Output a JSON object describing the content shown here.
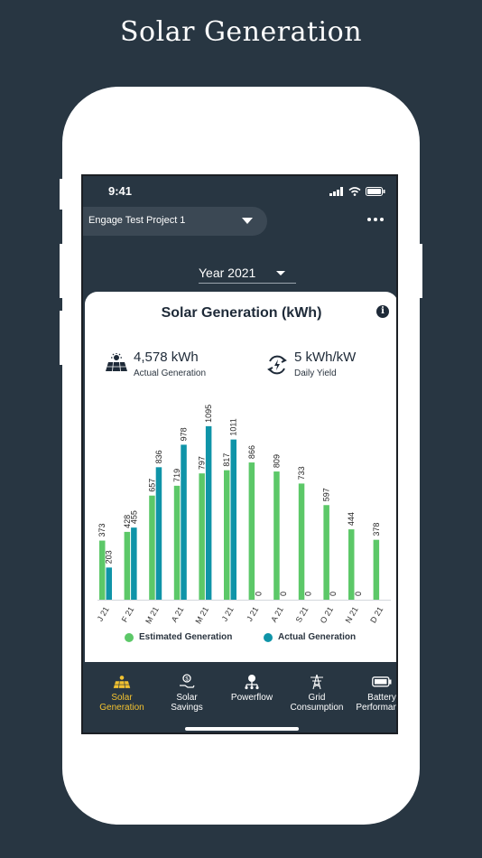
{
  "promo": {
    "title": "Solar Generation"
  },
  "status_bar": {
    "time": "9:41"
  },
  "header": {
    "project_name": "Engage Test Project 1",
    "more_icon": "more-dots-icon"
  },
  "year_selector": {
    "value": "Year 2021"
  },
  "card": {
    "title": "Solar Generation (kWh)",
    "info_icon": "info-icon",
    "stats": [
      {
        "value": "4,578 kWh",
        "label": "Actual Generation",
        "icon": "solar-panel-icon"
      },
      {
        "value": "5 kWh/kW",
        "label": "Daily Yield",
        "icon": "yield-cycle-icon"
      }
    ],
    "legend": [
      {
        "label": "Estimated Generation",
        "color": "#5cc868"
      },
      {
        "label": "Actual Generation",
        "color": "#0f94a8"
      }
    ]
  },
  "chart_data": {
    "type": "bar",
    "categories": [
      "J 21",
      "F 21",
      "M 21",
      "A 21",
      "M 21",
      "J 21",
      "J 21",
      "A 21",
      "S 21",
      "O 21",
      "N 21",
      "D 21"
    ],
    "series": [
      {
        "name": "Estimated Generation",
        "color": "#5cc868",
        "values": [
          373,
          428,
          657,
          719,
          797,
          817,
          866,
          809,
          733,
          597,
          444,
          378
        ]
      },
      {
        "name": "Actual Generation",
        "color": "#0f94a8",
        "values": [
          203,
          455,
          836,
          978,
          1095,
          1011,
          0,
          0,
          0,
          0,
          0,
          null
        ]
      }
    ],
    "ylim": [
      0,
      1100
    ],
    "grid": false,
    "legend_position": "bottom"
  },
  "tabs": [
    {
      "label_line1": "Solar",
      "label_line2": "Generation",
      "icon": "solar-panel-icon",
      "active": true
    },
    {
      "label_line1": "Solar",
      "label_line2": "Savings",
      "icon": "savings-hand-icon",
      "active": false
    },
    {
      "label_line1": "Powerflow",
      "label_line2": "",
      "icon": "powerflow-icon",
      "active": false
    },
    {
      "label_line1": "Grid",
      "label_line2": "Consumption",
      "icon": "grid-tower-icon",
      "active": false
    },
    {
      "label_line1": "Battery",
      "label_line2": "Performance",
      "icon": "battery-icon",
      "active": false
    }
  ]
}
